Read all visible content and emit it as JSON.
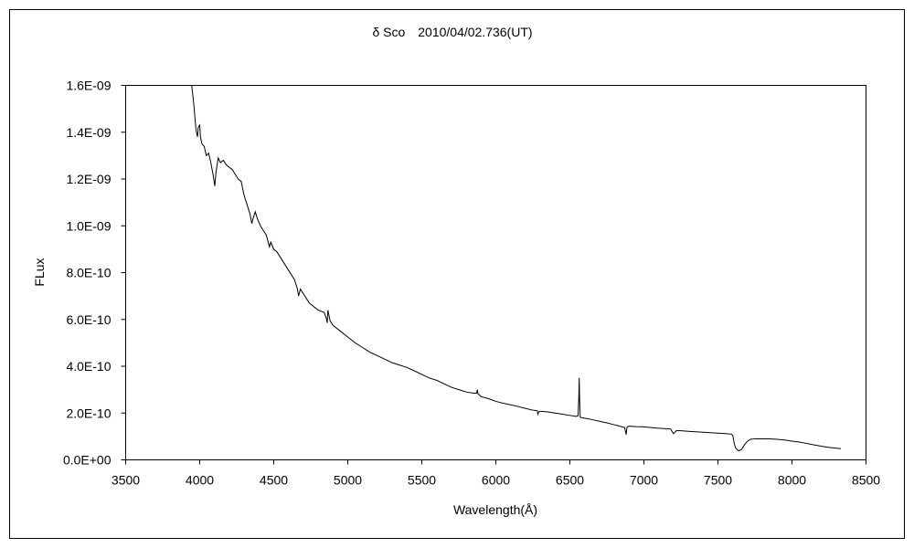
{
  "chart_data": {
    "type": "line",
    "title": "δ Sco　2010/04/02.736(UT)",
    "xlabel": "Wavelength(Å)",
    "ylabel": "FLux",
    "xlim": [
      3500,
      8500
    ],
    "ylim": [
      0,
      1.6e-09
    ],
    "x_ticks": [
      3500,
      4000,
      4500,
      5000,
      5500,
      6000,
      6500,
      7000,
      7500,
      8000,
      8500
    ],
    "x_tick_labels": [
      "3500",
      "4000",
      "4500",
      "5000",
      "5500",
      "6000",
      "6500",
      "7000",
      "7500",
      "8000",
      "8500"
    ],
    "y_ticks": [
      0,
      2e-10,
      4e-10,
      6e-10,
      8e-10,
      1e-09,
      1.2e-09,
      1.4e-09,
      1.6e-09
    ],
    "y_tick_labels": [
      "0.0E+00",
      "2.0E-10",
      "4.0E-10",
      "6.0E-10",
      "8.0E-10",
      "1.0E-09",
      "1.2E-09",
      "1.4E-09",
      "1.6E-09"
    ],
    "grid": false,
    "legend": "none",
    "line_color": "#000000",
    "series": [
      {
        "x": [
          3946,
          3960,
          3968,
          3975,
          3985,
          3990,
          4000,
          4005,
          4015,
          4030,
          4045,
          4060,
          4075,
          4090,
          4102,
          4110,
          4125,
          4140,
          4160,
          4180,
          4200,
          4220,
          4240,
          4260,
          4280,
          4300,
          4320,
          4340,
          4352,
          4360,
          4375,
          4390,
          4410,
          4430,
          4450,
          4471,
          4480,
          4500,
          4520,
          4540,
          4560,
          4580,
          4600,
          4620,
          4640,
          4660,
          4668,
          4680,
          4700,
          4720,
          4740,
          4760,
          4780,
          4800,
          4820,
          4840,
          4855,
          4861,
          4866,
          4880,
          4900,
          4920,
          4950,
          5000,
          5050,
          5100,
          5150,
          5200,
          5250,
          5300,
          5350,
          5400,
          5450,
          5500,
          5550,
          5600,
          5650,
          5700,
          5750,
          5800,
          5850,
          5870,
          5875,
          5880,
          5890,
          5900,
          5950,
          6000,
          6050,
          6100,
          6150,
          6200,
          6250,
          6280,
          6284,
          6290,
          6300,
          6350,
          6400,
          6450,
          6500,
          6540,
          6555,
          6560,
          6563,
          6566,
          6570,
          6580,
          6600,
          6650,
          6700,
          6750,
          6800,
          6850,
          6870,
          6880,
          6885,
          6890,
          6900,
          6950,
          7000,
          7050,
          7100,
          7150,
          7180,
          7200,
          7220,
          7240,
          7300,
          7350,
          7400,
          7450,
          7500,
          7550,
          7590,
          7600,
          7610,
          7620,
          7640,
          7660,
          7680,
          7700,
          7720,
          7750,
          7800,
          7850,
          7900,
          7950,
          8000,
          8050,
          8100,
          8150,
          8200,
          8250,
          8300,
          8330
        ],
        "y": [
          1.6e-09,
          1.52e-09,
          1.46e-09,
          1.41e-09,
          1.38e-09,
          1.42e-09,
          1.43e-09,
          1.38e-09,
          1.35e-09,
          1.34e-09,
          1.3e-09,
          1.31e-09,
          1.27e-09,
          1.22e-09,
          1.17e-09,
          1.23e-09,
          1.29e-09,
          1.27e-09,
          1.28e-09,
          1.26e-09,
          1.25e-09,
          1.24e-09,
          1.22e-09,
          1.2e-09,
          1.19e-09,
          1.13e-09,
          1.09e-09,
          1.05e-09,
          1.01e-09,
          1.03e-09,
          1.06e-09,
          1.03e-09,
          1e-09,
          9.8e-10,
          9.6e-10,
          9.1e-10,
          9.3e-10,
          9e-10,
          8.9e-10,
          8.7e-10,
          8.5e-10,
          8.3e-10,
          8.1e-10,
          7.9e-10,
          7.7e-10,
          7.3e-10,
          7e-10,
          7.3e-10,
          7.1e-10,
          6.9e-10,
          6.7e-10,
          6.6e-10,
          6.5e-10,
          6.4e-10,
          6.35e-10,
          6.3e-10,
          6.05e-10,
          5.85e-10,
          6.4e-10,
          5.95e-10,
          5.75e-10,
          5.65e-10,
          5.5e-10,
          5.25e-10,
          5e-10,
          4.8e-10,
          4.6e-10,
          4.45e-10,
          4.3e-10,
          4.15e-10,
          4.05e-10,
          3.95e-10,
          3.8e-10,
          3.65e-10,
          3.5e-10,
          3.4e-10,
          3.25e-10,
          3.1e-10,
          3e-10,
          2.9e-10,
          2.85e-10,
          2.85e-10,
          3e-10,
          2.8e-10,
          2.78e-10,
          2.7e-10,
          2.62e-10,
          2.5e-10,
          2.42e-10,
          2.35e-10,
          2.28e-10,
          2.2e-10,
          2.12e-10,
          2.1e-10,
          1.95e-10,
          2.05e-10,
          2.08e-10,
          2.05e-10,
          2e-10,
          1.95e-10,
          1.9e-10,
          1.86e-10,
          1.88e-10,
          2.6e-10,
          3.5e-10,
          2.5e-10,
          1.82e-10,
          1.8e-10,
          1.78e-10,
          1.72e-10,
          1.65e-10,
          1.58e-10,
          1.5e-10,
          1.42e-10,
          1.38e-10,
          1.08e-10,
          1.38e-10,
          1.42e-10,
          1.44e-10,
          1.42e-10,
          1.41e-10,
          1.38e-10,
          1.35e-10,
          1.33e-10,
          1.32e-10,
          1.12e-10,
          1.25e-10,
          1.25e-10,
          1.22e-10,
          1.2e-10,
          1.18e-10,
          1.16e-10,
          1.14e-10,
          1.12e-10,
          1.1e-10,
          1.05e-10,
          7e-11,
          5e-11,
          3.8e-11,
          4.5e-11,
          6.5e-11,
          8e-11,
          8.8e-11,
          9e-11,
          9e-11,
          9e-11,
          8.8e-11,
          8.5e-11,
          8e-11,
          7.6e-11,
          7e-11,
          6.4e-11,
          5.8e-11,
          5.3e-11,
          5e-11,
          4.8e-11
        ]
      }
    ]
  }
}
